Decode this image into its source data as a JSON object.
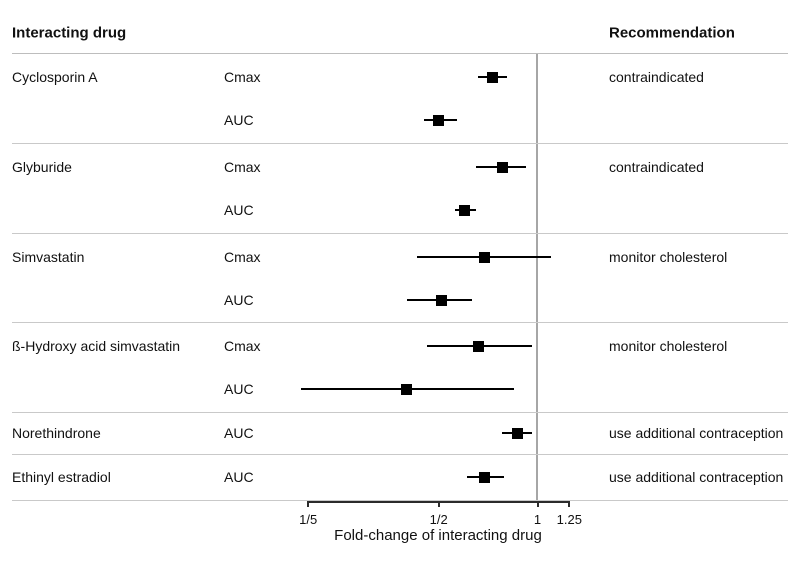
{
  "header": {
    "left": "Interacting drug",
    "right": "Recommendation"
  },
  "colors": {
    "marker": "#000000",
    "ci_line": "#000000",
    "reference_line": "#a6a6a6",
    "separator": "#c9c9c9",
    "axis": "#2b2b2b",
    "text": "#111111",
    "background": "#ffffff"
  },
  "chart_data": {
    "type": "scatter",
    "subtype": "forest-plot",
    "title": "",
    "xlabel": "Fold-change of interacting drug",
    "x_scale": "log",
    "x_range": [
      0.2,
      1.25
    ],
    "reference_line": 1,
    "grid": false,
    "legend": "none",
    "x_ticks": [
      {
        "label": "1/5",
        "value": 0.2
      },
      {
        "label": "1/2",
        "value": 0.5
      },
      {
        "label": "1",
        "value": 1
      },
      {
        "label": "1.25",
        "value": 1.25
      }
    ],
    "groups": [
      {
        "drug": "Cyclosporin A",
        "recommendation": "contraindicated",
        "rows": [
          {
            "measure": "Cmax",
            "estimate": 0.73,
            "ci_low": 0.66,
            "ci_high": 0.81
          },
          {
            "measure": "AUC",
            "estimate": 0.5,
            "ci_low": 0.45,
            "ci_high": 0.57
          }
        ]
      },
      {
        "drug": "Glyburide",
        "recommendation": "contraindicated",
        "rows": [
          {
            "measure": "Cmax",
            "estimate": 0.78,
            "ci_low": 0.65,
            "ci_high": 0.92
          },
          {
            "measure": "AUC",
            "estimate": 0.6,
            "ci_low": 0.56,
            "ci_high": 0.65
          }
        ]
      },
      {
        "drug": "Simvastatin",
        "recommendation": "monitor cholesterol",
        "rows": [
          {
            "measure": "Cmax",
            "estimate": 0.69,
            "ci_low": 0.43,
            "ci_high": 1.1
          },
          {
            "measure": "AUC",
            "estimate": 0.51,
            "ci_low": 0.4,
            "ci_high": 0.63
          }
        ]
      },
      {
        "drug": "ß-Hydroxy acid simvastatin",
        "recommendation": "monitor cholesterol",
        "rows": [
          {
            "measure": "Cmax",
            "estimate": 0.66,
            "ci_low": 0.46,
            "ci_high": 0.96
          },
          {
            "measure": "AUC",
            "estimate": 0.4,
            "ci_low": 0.19,
            "ci_high": 0.85
          }
        ]
      },
      {
        "drug": "Norethindrone",
        "recommendation": "use additional contraception",
        "rows": [
          {
            "measure": "AUC",
            "estimate": 0.87,
            "ci_low": 0.78,
            "ci_high": 0.96
          }
        ]
      },
      {
        "drug": "Ethinyl estradiol",
        "recommendation": "use additional contraception",
        "rows": [
          {
            "measure": "AUC",
            "estimate": 0.69,
            "ci_low": 0.61,
            "ci_high": 0.79
          }
        ]
      }
    ]
  }
}
